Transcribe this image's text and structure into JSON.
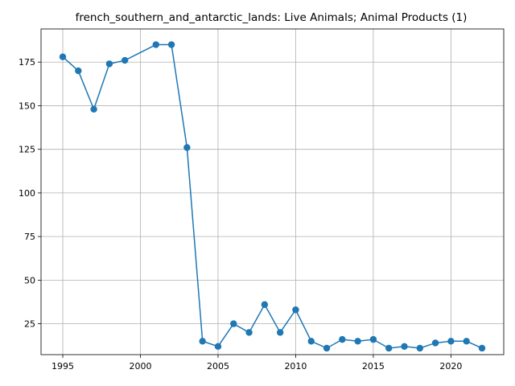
{
  "chart_data": {
    "type": "line",
    "title": "french_southern_and_antarctic_lands: Live Animals; Animal Products (1)",
    "xlabel": "",
    "ylabel": "",
    "xlim": [
      1993.6,
      2023.4
    ],
    "ylim": [
      7.3,
      194.0
    ],
    "xticks": [
      1995,
      2000,
      2005,
      2010,
      2015,
      2020
    ],
    "yticks": [
      25,
      50,
      75,
      100,
      125,
      150,
      175
    ],
    "grid": true,
    "color": "#1f77b4",
    "series": [
      {
        "x": [
          1995,
          1996,
          1997,
          1998,
          1999,
          2001,
          2002,
          2003,
          2004,
          2005,
          2006,
          2007,
          2008,
          2009,
          2010,
          2011,
          2012,
          2013,
          2014,
          2015,
          2016,
          2017,
          2018,
          2019,
          2020,
          2021,
          2022
        ],
        "y": [
          178,
          170,
          148,
          174,
          176,
          185,
          185,
          126,
          15,
          12,
          25,
          20,
          36,
          20,
          33,
          15,
          11,
          16,
          15,
          16,
          11,
          12,
          11,
          14,
          15,
          15,
          11
        ]
      }
    ]
  }
}
